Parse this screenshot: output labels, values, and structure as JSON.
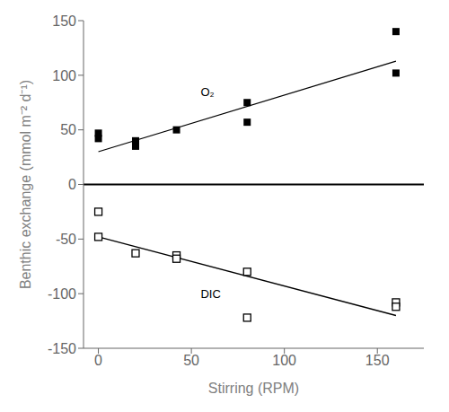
{
  "chart_data": {
    "type": "scatter",
    "xlabel": "Stirring (RPM)",
    "ylabel": "Benthic exchange (mmol m⁻² d⁻¹)",
    "xlim": [
      -8,
      175
    ],
    "ylim": [
      -150,
      150
    ],
    "xticks": [
      0,
      50,
      100,
      150
    ],
    "yticks": [
      -150,
      -100,
      -50,
      0,
      50,
      100,
      150
    ],
    "grid": false,
    "series": [
      {
        "type": "scatter",
        "marker": "square",
        "color": "#000000",
        "x": [
          0,
          0,
          20,
          20,
          42,
          80,
          80,
          160,
          160
        ],
        "values": [
          42,
          47,
          35,
          40,
          50,
          75,
          57,
          140,
          102
        ]
      },
      {
        "type": "scatter",
        "marker": "square_open",
        "color": "#000000",
        "x": [
          0,
          0,
          20,
          42,
          42,
          80,
          80,
          160,
          160
        ],
        "values": [
          -25,
          -48,
          -63,
          -65,
          -68,
          -80,
          -122,
          -108,
          -112
        ]
      },
      {
        "type": "line",
        "color": "#000000",
        "x": [
          0,
          160
        ],
        "values": [
          30,
          113
        ]
      },
      {
        "type": "line",
        "color": "#000000",
        "x": [
          0,
          160
        ],
        "values": [
          -48,
          -120
        ]
      }
    ],
    "reference_lines": [
      {
        "y": 0,
        "color": "#000000"
      }
    ],
    "annotations": [
      {
        "text": "O₂",
        "x": 55,
        "y": 85
      },
      {
        "text": "DIC",
        "x": 55,
        "y": -100
      }
    ]
  }
}
